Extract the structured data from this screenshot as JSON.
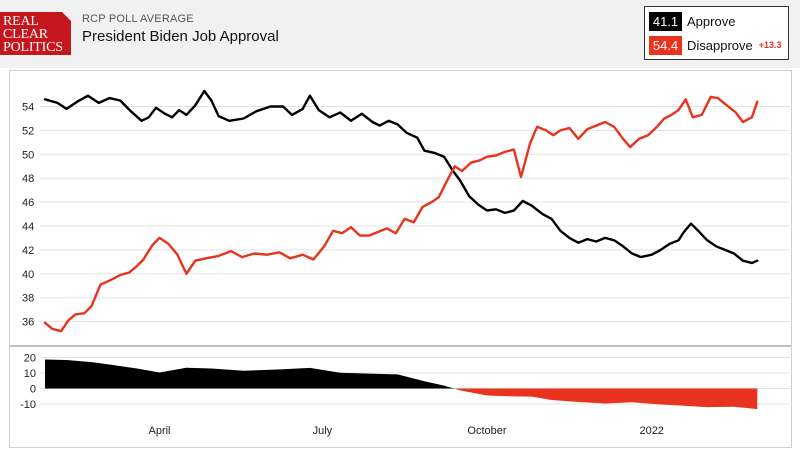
{
  "header": {
    "logo_lines": [
      "REAL",
      "CLEAR",
      "POLITICS"
    ],
    "kicker": "RCP POLL AVERAGE",
    "title": "President Biden Job Approval"
  },
  "legend": {
    "approve_value": "41.1",
    "approve_label": "Approve",
    "disapprove_value": "54.4",
    "disapprove_label": "Disapprove",
    "spread": "+13.3"
  },
  "colors": {
    "approve": "#000000",
    "disapprove": "#e8331e",
    "grid": "#e3e3e3"
  },
  "chart_data": [
    {
      "type": "line",
      "x_ticks": [
        "April",
        "July",
        "October",
        "2022"
      ],
      "y_ticks": [
        36,
        38,
        40,
        42,
        44,
        46,
        48,
        50,
        52,
        54
      ],
      "ylim": [
        34.8,
        55.6
      ],
      "grid": true,
      "legend": "top-right",
      "x_range": [
        "2021-01-27",
        "2022-03-07"
      ],
      "series": [
        {
          "name": "Approve",
          "points": [
            [
              "2021-01-27",
              54.6
            ],
            [
              "2021-02-03",
              54.3
            ],
            [
              "2021-02-08",
              53.8
            ],
            [
              "2021-02-14",
              54.4
            ],
            [
              "2021-02-20",
              54.9
            ],
            [
              "2021-02-26",
              54.3
            ],
            [
              "2021-03-04",
              54.7
            ],
            [
              "2021-03-10",
              54.5
            ],
            [
              "2021-03-16",
              53.6
            ],
            [
              "2021-03-22",
              52.8
            ],
            [
              "2021-03-26",
              53.1
            ],
            [
              "2021-03-30",
              53.9
            ],
            [
              "2021-04-04",
              53.4
            ],
            [
              "2021-04-08",
              53.1
            ],
            [
              "2021-04-12",
              53.7
            ],
            [
              "2021-04-16",
              53.3
            ],
            [
              "2021-04-21",
              54.1
            ],
            [
              "2021-04-26",
              55.3
            ],
            [
              "2021-04-30",
              54.5
            ],
            [
              "2021-05-04",
              53.2
            ],
            [
              "2021-05-10",
              52.8
            ],
            [
              "2021-05-18",
              53.0
            ],
            [
              "2021-05-25",
              53.6
            ],
            [
              "2021-06-02",
              54.0
            ],
            [
              "2021-06-09",
              54.0
            ],
            [
              "2021-06-14",
              53.3
            ],
            [
              "2021-06-20",
              53.8
            ],
            [
              "2021-06-24",
              54.9
            ],
            [
              "2021-06-29",
              53.7
            ],
            [
              "2021-07-05",
              53.1
            ],
            [
              "2021-07-11",
              53.5
            ],
            [
              "2021-07-17",
              52.8
            ],
            [
              "2021-07-23",
              53.4
            ],
            [
              "2021-07-29",
              52.7
            ],
            [
              "2021-08-02",
              52.4
            ],
            [
              "2021-08-07",
              52.8
            ],
            [
              "2021-08-12",
              52.5
            ],
            [
              "2021-08-17",
              51.8
            ],
            [
              "2021-08-23",
              51.4
            ],
            [
              "2021-08-27",
              50.3
            ],
            [
              "2021-09-02",
              50.1
            ],
            [
              "2021-09-07",
              49.8
            ],
            [
              "2021-09-12",
              48.6
            ],
            [
              "2021-09-16",
              47.8
            ],
            [
              "2021-09-21",
              46.5
            ],
            [
              "2021-09-26",
              45.8
            ],
            [
              "2021-10-01",
              45.3
            ],
            [
              "2021-10-06",
              45.4
            ],
            [
              "2021-10-11",
              45.1
            ],
            [
              "2021-10-16",
              45.3
            ],
            [
              "2021-10-21",
              46.1
            ],
            [
              "2021-10-26",
              45.7
            ],
            [
              "2021-11-01",
              45.0
            ],
            [
              "2021-11-06",
              44.6
            ],
            [
              "2021-11-11",
              43.6
            ],
            [
              "2021-11-16",
              43.0
            ],
            [
              "2021-11-21",
              42.6
            ],
            [
              "2021-11-26",
              42.9
            ],
            [
              "2021-12-01",
              42.7
            ],
            [
              "2021-12-06",
              43.0
            ],
            [
              "2021-12-11",
              42.8
            ],
            [
              "2021-12-16",
              42.3
            ],
            [
              "2021-12-21",
              41.7
            ],
            [
              "2021-12-26",
              41.4
            ],
            [
              "2022-01-01",
              41.6
            ],
            [
              "2022-01-06",
              42.0
            ],
            [
              "2022-01-11",
              42.5
            ],
            [
              "2022-01-16",
              42.8
            ],
            [
              "2022-01-19",
              43.5
            ],
            [
              "2022-01-23",
              44.2
            ],
            [
              "2022-01-27",
              43.6
            ],
            [
              "2022-02-01",
              42.8
            ],
            [
              "2022-02-06",
              42.3
            ],
            [
              "2022-02-11",
              42.0
            ],
            [
              "2022-02-16",
              41.7
            ],
            [
              "2022-02-21",
              41.1
            ],
            [
              "2022-02-26",
              40.9
            ],
            [
              "2022-03-01",
              41.1
            ]
          ]
        },
        {
          "name": "Disapprove",
          "points": [
            [
              "2021-01-27",
              35.9
            ],
            [
              "2021-01-31",
              35.4
            ],
            [
              "2021-02-05",
              35.2
            ],
            [
              "2021-02-09",
              36.1
            ],
            [
              "2021-02-13",
              36.6
            ],
            [
              "2021-02-18",
              36.7
            ],
            [
              "2021-02-22",
              37.3
            ],
            [
              "2021-02-27",
              39.1
            ],
            [
              "2021-03-05",
              39.5
            ],
            [
              "2021-03-10",
              39.9
            ],
            [
              "2021-03-15",
              40.1
            ],
            [
              "2021-03-19",
              40.6
            ],
            [
              "2021-03-23",
              41.2
            ],
            [
              "2021-03-28",
              42.4
            ],
            [
              "2021-04-01",
              43.0
            ],
            [
              "2021-04-06",
              42.5
            ],
            [
              "2021-04-11",
              41.6
            ],
            [
              "2021-04-16",
              40.0
            ],
            [
              "2021-04-21",
              41.1
            ],
            [
              "2021-04-27",
              41.3
            ],
            [
              "2021-05-04",
              41.5
            ],
            [
              "2021-05-11",
              41.9
            ],
            [
              "2021-05-17",
              41.4
            ],
            [
              "2021-05-24",
              41.7
            ],
            [
              "2021-05-31",
              41.6
            ],
            [
              "2021-06-07",
              41.8
            ],
            [
              "2021-06-13",
              41.3
            ],
            [
              "2021-06-20",
              41.6
            ],
            [
              "2021-06-26",
              41.2
            ],
            [
              "2021-07-02",
              42.3
            ],
            [
              "2021-07-07",
              43.6
            ],
            [
              "2021-07-12",
              43.4
            ],
            [
              "2021-07-17",
              43.9
            ],
            [
              "2021-07-22",
              43.2
            ],
            [
              "2021-07-27",
              43.2
            ],
            [
              "2021-08-01",
              43.5
            ],
            [
              "2021-08-06",
              43.8
            ],
            [
              "2021-08-11",
              43.4
            ],
            [
              "2021-08-16",
              44.6
            ],
            [
              "2021-08-21",
              44.3
            ],
            [
              "2021-08-26",
              45.6
            ],
            [
              "2021-08-31",
              46.0
            ],
            [
              "2021-09-04",
              46.4
            ],
            [
              "2021-09-09",
              47.9
            ],
            [
              "2021-09-13",
              49.0
            ],
            [
              "2021-09-17",
              48.6
            ],
            [
              "2021-09-22",
              49.3
            ],
            [
              "2021-09-27",
              49.5
            ],
            [
              "2021-10-01",
              49.8
            ],
            [
              "2021-10-06",
              49.9
            ],
            [
              "2021-10-11",
              50.2
            ],
            [
              "2021-10-16",
              50.4
            ],
            [
              "2021-10-20",
              48.1
            ],
            [
              "2021-10-25",
              50.9
            ],
            [
              "2021-10-29",
              52.3
            ],
            [
              "2021-11-03",
              52.0
            ],
            [
              "2021-11-07",
              51.6
            ],
            [
              "2021-11-11",
              52.0
            ],
            [
              "2021-11-16",
              52.2
            ],
            [
              "2021-11-21",
              51.3
            ],
            [
              "2021-11-26",
              52.1
            ],
            [
              "2021-12-01",
              52.4
            ],
            [
              "2021-12-06",
              52.7
            ],
            [
              "2021-12-11",
              52.3
            ],
            [
              "2021-12-16",
              51.3
            ],
            [
              "2021-12-20",
              50.6
            ],
            [
              "2021-12-25",
              51.3
            ],
            [
              "2021-12-30",
              51.6
            ],
            [
              "2022-01-04",
              52.3
            ],
            [
              "2022-01-08",
              53.0
            ],
            [
              "2022-01-12",
              53.3
            ],
            [
              "2022-01-16",
              53.7
            ],
            [
              "2022-01-20",
              54.6
            ],
            [
              "2022-01-24",
              53.1
            ],
            [
              "2022-01-29",
              53.3
            ],
            [
              "2022-02-03",
              54.8
            ],
            [
              "2022-02-07",
              54.7
            ],
            [
              "2022-02-12",
              54.1
            ],
            [
              "2022-02-17",
              53.5
            ],
            [
              "2022-02-21",
              52.7
            ],
            [
              "2022-02-26",
              53.1
            ],
            [
              "2022-03-01",
              54.4
            ]
          ]
        }
      ]
    },
    {
      "type": "area",
      "y_ticks": [
        20,
        10,
        0,
        -10
      ],
      "ylim": [
        -15,
        22
      ],
      "series": [
        {
          "name": "Spread",
          "points": [
            [
              "2021-01-27",
              18.7
            ],
            [
              "2021-02-08",
              18.4
            ],
            [
              "2021-02-22",
              17.0
            ],
            [
              "2021-03-05",
              15.3
            ],
            [
              "2021-03-19",
              13.0
            ],
            [
              "2021-04-01",
              10.3
            ],
            [
              "2021-04-16",
              13.4
            ],
            [
              "2021-04-30",
              12.9
            ],
            [
              "2021-05-18",
              11.4
            ],
            [
              "2021-06-09",
              12.4
            ],
            [
              "2021-06-24",
              13.3
            ],
            [
              "2021-07-11",
              10.1
            ],
            [
              "2021-07-29",
              9.5
            ],
            [
              "2021-08-12",
              9.1
            ],
            [
              "2021-08-27",
              4.7
            ],
            [
              "2021-09-07",
              1.9
            ],
            [
              "2021-09-16",
              -1.2
            ],
            [
              "2021-10-01",
              -4.5
            ],
            [
              "2021-10-16",
              -5.1
            ],
            [
              "2021-10-26",
              -5.2
            ],
            [
              "2021-11-06",
              -7.4
            ],
            [
              "2021-11-21",
              -8.7
            ],
            [
              "2021-12-06",
              -9.7
            ],
            [
              "2021-12-21",
              -8.9
            ],
            [
              "2022-01-06",
              -10.3
            ],
            [
              "2022-01-19",
              -11.1
            ],
            [
              "2022-02-01",
              -12.0
            ],
            [
              "2022-02-16",
              -11.8
            ],
            [
              "2022-03-01",
              -13.3
            ]
          ]
        }
      ]
    }
  ]
}
